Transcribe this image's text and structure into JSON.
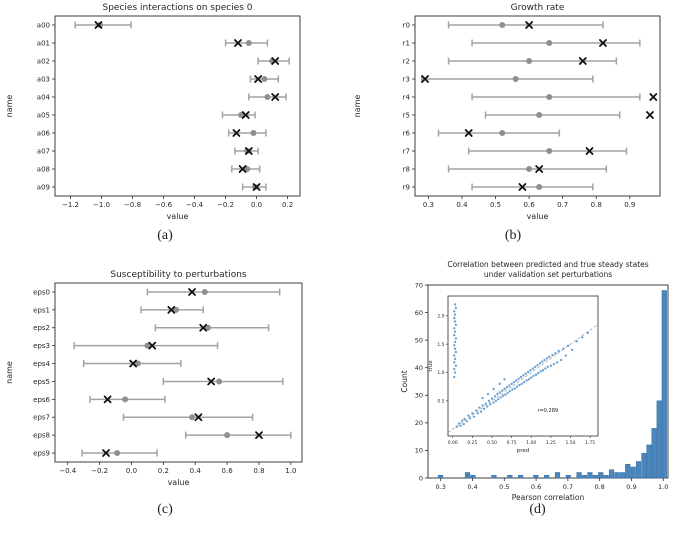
{
  "figure": {
    "captions": {
      "a": "(a)",
      "b": "(b)",
      "c": "(c)",
      "d": "(d)"
    }
  },
  "colors": {
    "axis": "#2b2b2b",
    "text": "#262626",
    "errorbar": "#a3a3a3",
    "estimate_dot": "#8f8f8f",
    "true_marker": "#111111",
    "hist_fill": "#4986bc",
    "hist_edge": "#3a6ea5",
    "scatter_dot": "#4f94d0",
    "diagonal": "#9a9a9a"
  },
  "chart_data": [
    {
      "id": "species-interactions",
      "type": "errorbar-h",
      "title": "Species interactions on species 0",
      "xlabel": "value",
      "ylabel": "name",
      "xlim": [
        -1.3,
        0.28
      ],
      "xticks": [
        -1.2,
        -1.0,
        -0.8,
        -0.6,
        -0.4,
        -0.2,
        0.0,
        0.2
      ],
      "xtick_labels": [
        "−1.2",
        "−1.0",
        "−0.8",
        "−0.6",
        "−0.4",
        "−0.2",
        "0.0",
        "0.2"
      ],
      "categories": [
        "a00",
        "a01",
        "a02",
        "a03",
        "a04",
        "a05",
        "a06",
        "a07",
        "a08",
        "a09"
      ],
      "rows": [
        {
          "lo": -1.17,
          "hi": -0.81,
          "est": -1.01,
          "true": -1.02
        },
        {
          "lo": -0.2,
          "hi": 0.07,
          "est": -0.05,
          "true": -0.12
        },
        {
          "lo": 0.01,
          "hi": 0.21,
          "est": 0.1,
          "true": 0.12
        },
        {
          "lo": -0.04,
          "hi": 0.14,
          "est": 0.05,
          "true": 0.01
        },
        {
          "lo": -0.05,
          "hi": 0.19,
          "est": 0.07,
          "true": 0.12
        },
        {
          "lo": -0.22,
          "hi": -0.01,
          "est": -0.1,
          "true": -0.07
        },
        {
          "lo": -0.18,
          "hi": 0.06,
          "est": -0.02,
          "true": -0.13
        },
        {
          "lo": -0.14,
          "hi": 0.01,
          "est": -0.06,
          "true": -0.05
        },
        {
          "lo": -0.16,
          "hi": 0.02,
          "est": -0.06,
          "true": -0.09
        },
        {
          "lo": -0.09,
          "hi": 0.06,
          "est": -0.01,
          "true": 0.0
        }
      ]
    },
    {
      "id": "growth-rate",
      "type": "errorbar-h",
      "title": "Growth rate",
      "xlabel": "value",
      "ylabel": "name",
      "xlim": [
        0.26,
        0.99
      ],
      "xticks": [
        0.3,
        0.4,
        0.5,
        0.6,
        0.7,
        0.8,
        0.9
      ],
      "xtick_labels": [
        "0.3",
        "0.4",
        "0.5",
        "0.6",
        "0.7",
        "0.8",
        "0.9"
      ],
      "categories": [
        "r0",
        "r1",
        "r2",
        "r3",
        "r4",
        "r5",
        "r6",
        "r7",
        "r8",
        "r9"
      ],
      "rows": [
        {
          "lo": 0.36,
          "hi": 0.82,
          "est": 0.52,
          "true": 0.6
        },
        {
          "lo": 0.43,
          "hi": 0.93,
          "est": 0.66,
          "true": 0.82
        },
        {
          "lo": 0.36,
          "hi": 0.86,
          "est": 0.6,
          "true": 0.76
        },
        {
          "lo": 0.28,
          "hi": 0.79,
          "est": 0.56,
          "true": 0.29
        },
        {
          "lo": 0.43,
          "hi": 0.93,
          "est": 0.66,
          "true": 0.97
        },
        {
          "lo": 0.47,
          "hi": 0.87,
          "est": 0.63,
          "true": 0.96
        },
        {
          "lo": 0.33,
          "hi": 0.69,
          "est": 0.52,
          "true": 0.42
        },
        {
          "lo": 0.42,
          "hi": 0.89,
          "est": 0.66,
          "true": 0.78
        },
        {
          "lo": 0.36,
          "hi": 0.83,
          "est": 0.6,
          "true": 0.63
        },
        {
          "lo": 0.43,
          "hi": 0.79,
          "est": 0.63,
          "true": 0.58
        }
      ]
    },
    {
      "id": "susceptibility",
      "type": "errorbar-h",
      "title": "Susceptibility to perturbations",
      "xlabel": "value",
      "ylabel": "name",
      "xlim": [
        -0.48,
        1.07
      ],
      "xticks": [
        -0.4,
        -0.2,
        0.0,
        0.2,
        0.4,
        0.6,
        0.8,
        1.0
      ],
      "xtick_labels": [
        "−0.4",
        "−0.2",
        "0.0",
        "0.2",
        "0.4",
        "0.6",
        "0.8",
        "1.0"
      ],
      "categories": [
        "eps0",
        "eps1",
        "eps2",
        "eps3",
        "eps4",
        "eps5",
        "eps6",
        "eps7",
        "eps8",
        "eps9"
      ],
      "rows": [
        {
          "lo": 0.1,
          "hi": 0.93,
          "est": 0.46,
          "true": 0.38
        },
        {
          "lo": 0.06,
          "hi": 0.45,
          "est": 0.28,
          "true": 0.25
        },
        {
          "lo": 0.15,
          "hi": 0.86,
          "est": 0.48,
          "true": 0.45
        },
        {
          "lo": -0.36,
          "hi": 0.54,
          "est": 0.1,
          "true": 0.13
        },
        {
          "lo": -0.3,
          "hi": 0.31,
          "est": 0.04,
          "true": 0.01
        },
        {
          "lo": 0.2,
          "hi": 0.95,
          "est": 0.55,
          "true": 0.5
        },
        {
          "lo": -0.26,
          "hi": 0.21,
          "est": -0.04,
          "true": -0.15
        },
        {
          "lo": -0.05,
          "hi": 0.76,
          "est": 0.38,
          "true": 0.42
        },
        {
          "lo": 0.34,
          "hi": 1.0,
          "est": 0.6,
          "true": 0.8
        },
        {
          "lo": -0.31,
          "hi": 0.16,
          "est": -0.09,
          "true": -0.16
        }
      ]
    },
    {
      "id": "correlation-hist",
      "type": "histogram",
      "title_lines": [
        "Correlation between predicted and true steady states",
        "under validation set perturbations"
      ],
      "xlabel": "Pearson correlation",
      "ylabel": "Count",
      "xlim": [
        0.26,
        1.015
      ],
      "ylim": [
        0,
        70
      ],
      "xticks": [
        0.3,
        0.4,
        0.5,
        0.6,
        0.7,
        0.8,
        0.9,
        1.0
      ],
      "xtick_labels": [
        "0.3",
        "0.4",
        "0.5",
        "0.6",
        "0.7",
        "0.8",
        "0.9",
        "1.0"
      ],
      "yticks": [
        0,
        10,
        20,
        30,
        40,
        50,
        60,
        70
      ],
      "ytick_labels": [
        "0",
        "10",
        "20",
        "30",
        "40",
        "50",
        "60",
        "70"
      ],
      "bin_width": 0.016,
      "bins": [
        [
          0.3,
          1
        ],
        [
          0.385,
          2
        ],
        [
          0.402,
          1
        ],
        [
          0.468,
          1
        ],
        [
          0.518,
          1
        ],
        [
          0.552,
          1
        ],
        [
          0.6,
          1
        ],
        [
          0.634,
          1
        ],
        [
          0.668,
          2
        ],
        [
          0.702,
          1
        ],
        [
          0.736,
          2
        ],
        [
          0.753,
          1
        ],
        [
          0.77,
          2
        ],
        [
          0.787,
          1
        ],
        [
          0.804,
          2
        ],
        [
          0.821,
          1
        ],
        [
          0.838,
          3
        ],
        [
          0.855,
          2
        ],
        [
          0.872,
          2
        ],
        [
          0.889,
          5
        ],
        [
          0.906,
          4
        ],
        [
          0.923,
          6
        ],
        [
          0.94,
          9
        ],
        [
          0.956,
          12
        ],
        [
          0.972,
          18
        ],
        [
          0.988,
          28
        ],
        [
          1.004,
          68
        ]
      ],
      "inset": {
        "xlabel": "pred",
        "ylabel": "true",
        "xlim": [
          -0.06,
          1.85
        ],
        "ylim": [
          -0.12,
          2.35
        ],
        "xticks": [
          0.0,
          0.25,
          0.5,
          0.75,
          1.0,
          1.25,
          1.5,
          1.75
        ],
        "xtick_labels": [
          "0.00",
          "0.25",
          "0.50",
          "0.75",
          "1.00",
          "1.25",
          "1.50",
          "1.75"
        ],
        "yticks": [
          0.5,
          1.0,
          1.5,
          2.0
        ],
        "ytick_labels": [
          "0.5",
          "1.0",
          "1.5",
          "2.0"
        ],
        "annotation": "r=0.289",
        "annotation_xy": [
          1.08,
          0.3
        ],
        "diagonal": true,
        "points": [
          [
            0.02,
            0.92
          ],
          [
            0.03,
            1.0
          ],
          [
            0.02,
            1.06
          ],
          [
            0.04,
            1.12
          ],
          [
            0.02,
            1.18
          ],
          [
            0.03,
            1.24
          ],
          [
            0.02,
            1.3
          ],
          [
            0.04,
            1.36
          ],
          [
            0.03,
            1.42
          ],
          [
            0.02,
            1.48
          ],
          [
            0.03,
            1.54
          ],
          [
            0.04,
            1.6
          ],
          [
            0.02,
            1.66
          ],
          [
            0.03,
            1.72
          ],
          [
            0.02,
            1.78
          ],
          [
            0.04,
            1.84
          ],
          [
            0.03,
            1.9
          ],
          [
            0.02,
            1.96
          ],
          [
            0.03,
            2.02
          ],
          [
            0.02,
            2.08
          ],
          [
            0.04,
            2.14
          ],
          [
            0.03,
            2.2
          ],
          [
            0.05,
            0.04
          ],
          [
            0.08,
            0.1
          ],
          [
            0.1,
            0.06
          ],
          [
            0.12,
            0.15
          ],
          [
            0.14,
            0.09
          ],
          [
            0.15,
            0.18
          ],
          [
            0.18,
            0.14
          ],
          [
            0.2,
            0.24
          ],
          [
            0.22,
            0.19
          ],
          [
            0.25,
            0.28
          ],
          [
            0.27,
            0.22
          ],
          [
            0.3,
            0.33
          ],
          [
            0.32,
            0.28
          ],
          [
            0.34,
            0.38
          ],
          [
            0.36,
            0.31
          ],
          [
            0.38,
            0.42
          ],
          [
            0.4,
            0.36
          ],
          [
            0.42,
            0.45
          ],
          [
            0.44,
            0.4
          ],
          [
            0.46,
            0.5
          ],
          [
            0.48,
            0.44
          ],
          [
            0.5,
            0.54
          ],
          [
            0.52,
            0.47
          ],
          [
            0.54,
            0.58
          ],
          [
            0.55,
            0.5
          ],
          [
            0.57,
            0.62
          ],
          [
            0.58,
            0.53
          ],
          [
            0.6,
            0.65
          ],
          [
            0.61,
            0.56
          ],
          [
            0.63,
            0.68
          ],
          [
            0.64,
            0.59
          ],
          [
            0.66,
            0.71
          ],
          [
            0.67,
            0.61
          ],
          [
            0.69,
            0.74
          ],
          [
            0.7,
            0.64
          ],
          [
            0.72,
            0.77
          ],
          [
            0.73,
            0.67
          ],
          [
            0.75,
            0.8
          ],
          [
            0.76,
            0.7
          ],
          [
            0.78,
            0.83
          ],
          [
            0.79,
            0.72
          ],
          [
            0.81,
            0.86
          ],
          [
            0.82,
            0.75
          ],
          [
            0.84,
            0.89
          ],
          [
            0.85,
            0.78
          ],
          [
            0.87,
            0.92
          ],
          [
            0.88,
            0.8
          ],
          [
            0.9,
            0.95
          ],
          [
            0.91,
            0.83
          ],
          [
            0.93,
            0.98
          ],
          [
            0.94,
            0.86
          ],
          [
            0.96,
            1.01
          ],
          [
            0.97,
            0.88
          ],
          [
            0.99,
            1.04
          ],
          [
            1.0,
            0.91
          ],
          [
            1.02,
            1.07
          ],
          [
            1.03,
            0.94
          ],
          [
            1.05,
            1.1
          ],
          [
            1.06,
            0.96
          ],
          [
            1.08,
            1.13
          ],
          [
            1.09,
            0.99
          ],
          [
            1.11,
            1.16
          ],
          [
            1.12,
            1.02
          ],
          [
            1.14,
            1.19
          ],
          [
            1.15,
            1.04
          ],
          [
            1.17,
            1.22
          ],
          [
            1.18,
            1.07
          ],
          [
            1.2,
            1.25
          ],
          [
            1.21,
            1.1
          ],
          [
            1.23,
            1.28
          ],
          [
            1.25,
            1.12
          ],
          [
            1.27,
            1.31
          ],
          [
            1.29,
            1.15
          ],
          [
            1.31,
            1.34
          ],
          [
            1.33,
            1.18
          ],
          [
            1.35,
            1.38
          ],
          [
            1.38,
            1.22
          ],
          [
            1.41,
            1.42
          ],
          [
            1.44,
            1.3
          ],
          [
            1.47,
            1.47
          ],
          [
            1.52,
            1.4
          ],
          [
            1.58,
            1.55
          ],
          [
            1.65,
            1.62
          ],
          [
            1.72,
            1.7
          ],
          [
            0.45,
            0.62
          ],
          [
            0.52,
            0.71
          ],
          [
            0.6,
            0.8
          ],
          [
            0.38,
            0.55
          ],
          [
            0.66,
            0.88
          ]
        ]
      }
    }
  ]
}
